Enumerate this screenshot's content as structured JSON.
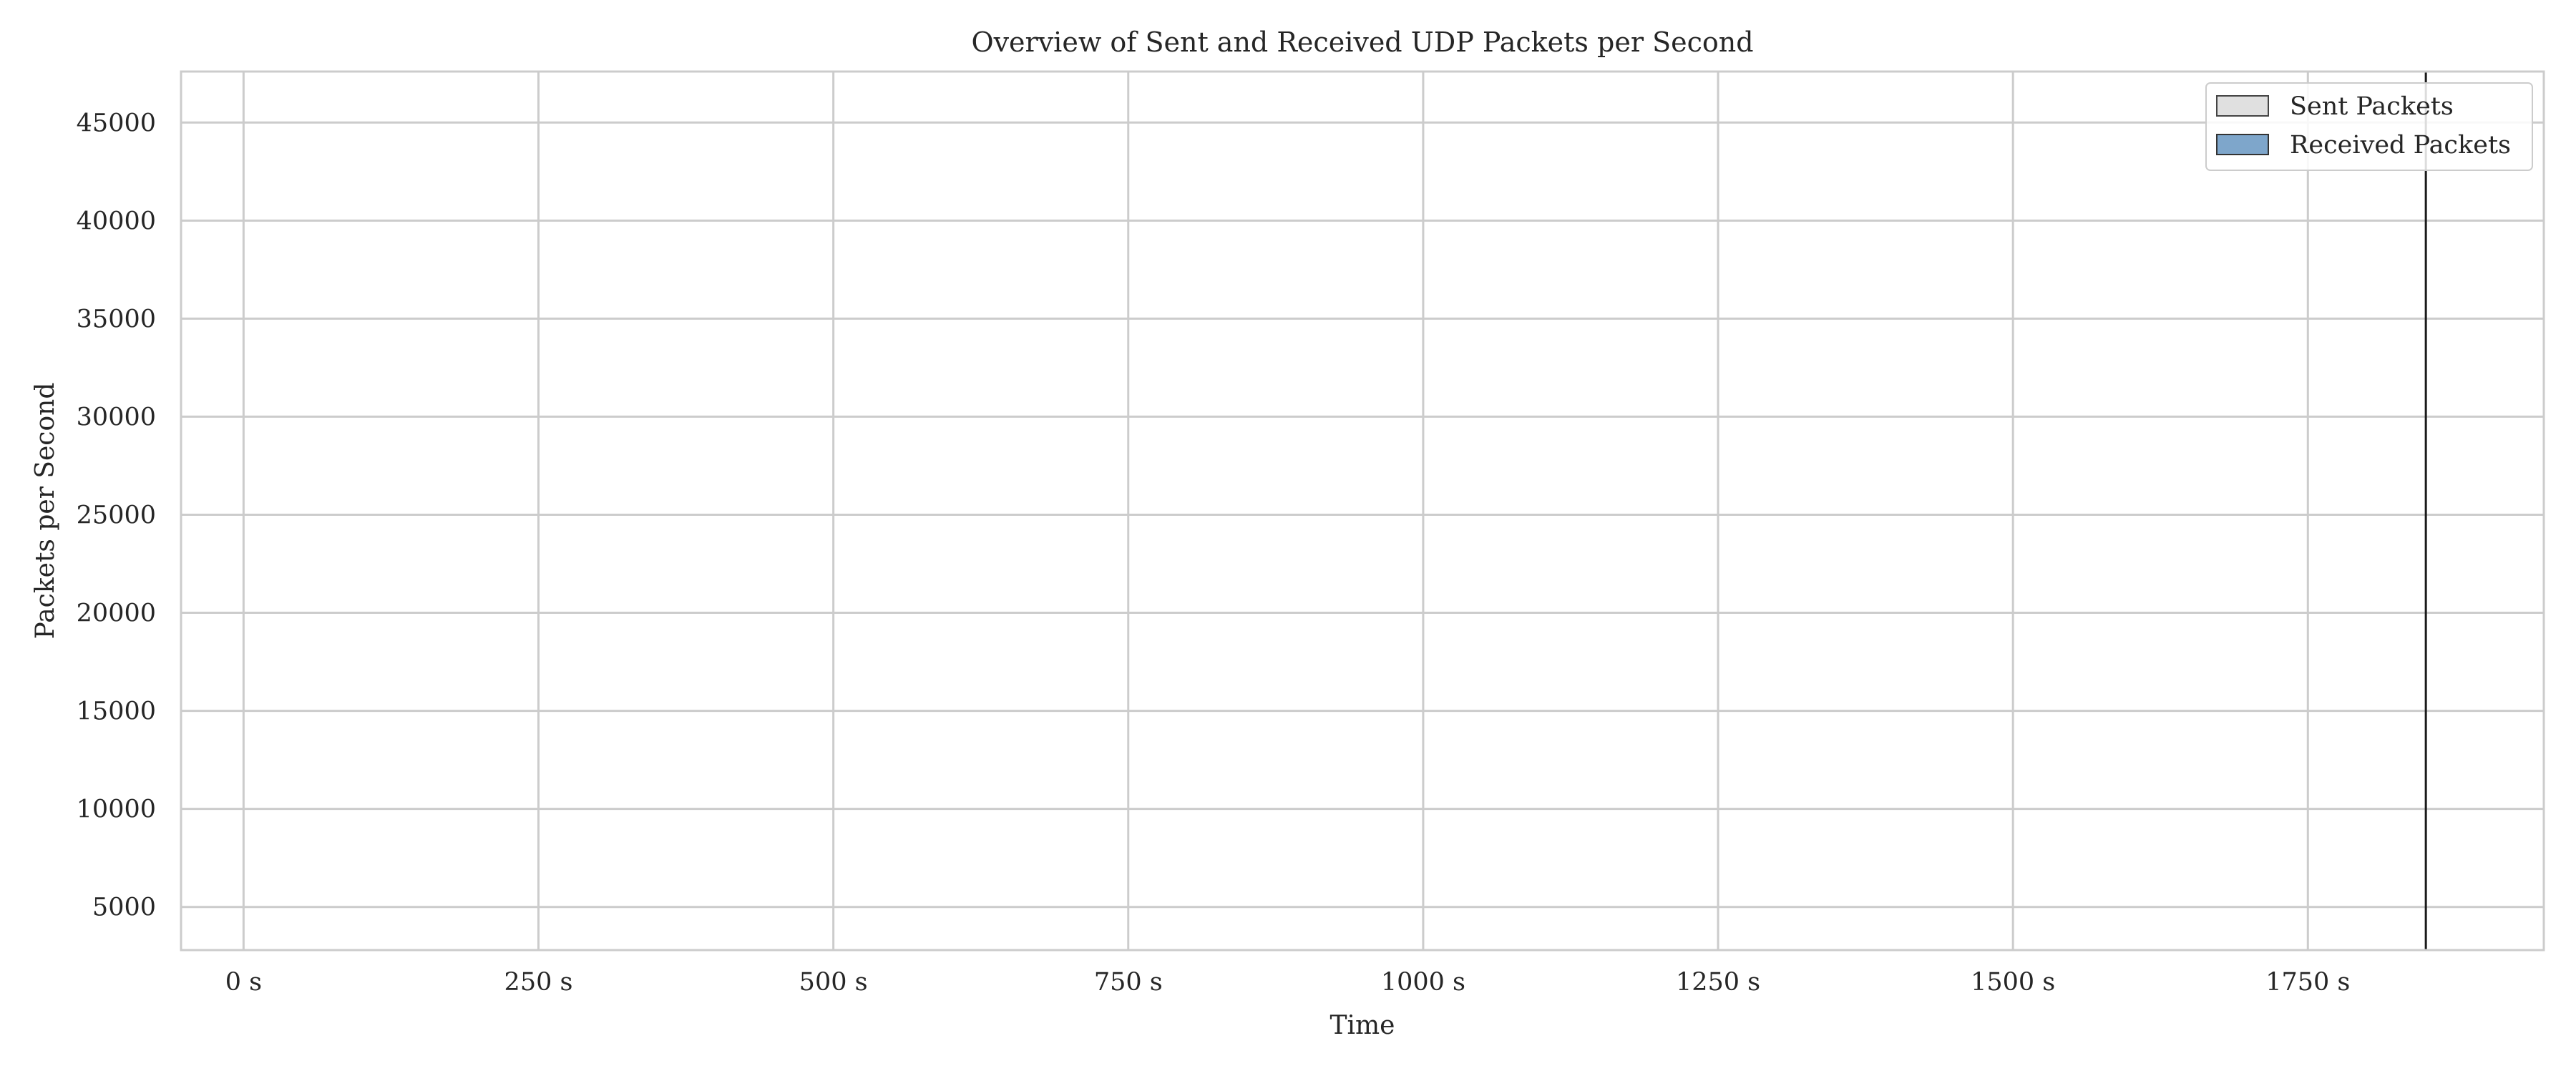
{
  "chart_data": {
    "type": "area",
    "title": "Overview of Sent and Received UDP Packets per Second",
    "xlabel": "Time",
    "ylabel": "Packets per Second",
    "x_tick_values": [
      0,
      250,
      500,
      750,
      1000,
      1250,
      1500,
      1750
    ],
    "x_tick_labels": [
      "0 s",
      "250 s",
      "500 s",
      "750 s",
      "1000 s",
      "1250 s",
      "1500 s",
      "1750 s"
    ],
    "y_tick_values": [
      5000,
      10000,
      15000,
      20000,
      25000,
      30000,
      35000,
      40000,
      45000
    ],
    "y_tick_labels": [
      "5000",
      "10000",
      "15000",
      "20000",
      "25000",
      "30000",
      "35000",
      "40000",
      "45000"
    ],
    "xlim": [
      -53,
      1950
    ],
    "ylim": [
      2800,
      47600
    ],
    "grid": true,
    "legend_placement": "top-right",
    "series": [
      {
        "name": "Sent Packets",
        "color": "#e0e0e0",
        "edge_color": "#444444",
        "x": [
          40,
          1850
        ],
        "values": [
          2800,
          2800
        ]
      },
      {
        "name": "Received Packets",
        "color": "#7ea6cb",
        "edge_color": "#333333",
        "x": [
          40,
          1850
        ],
        "values": [
          2800,
          2800
        ]
      }
    ],
    "annotations": [
      {
        "type": "vertical-line",
        "x": 1850,
        "color": "#1a1a1a"
      }
    ]
  }
}
